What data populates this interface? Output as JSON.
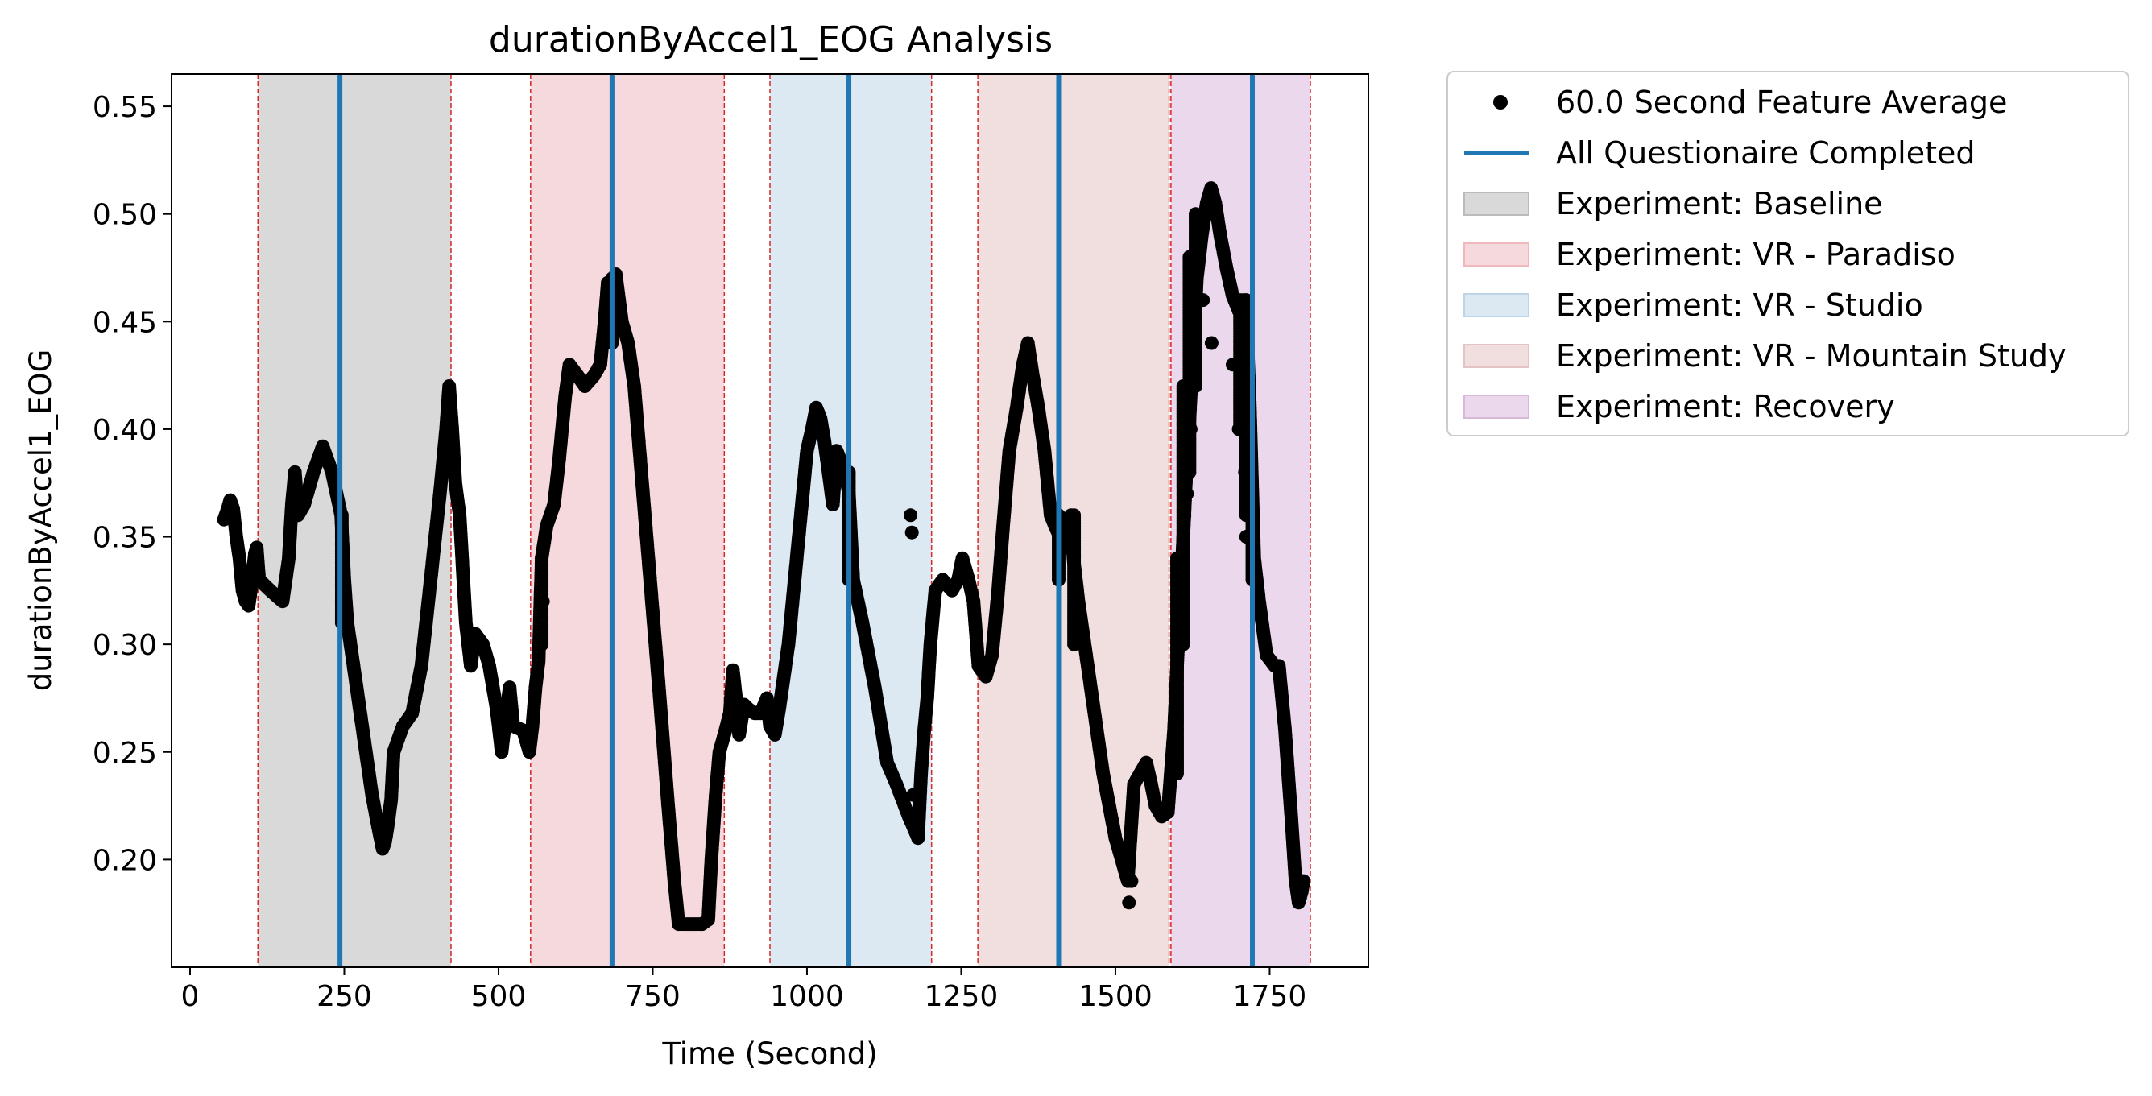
{
  "chart_data": {
    "type": "scatter",
    "title": "durationByAccel1_EOG Analysis",
    "xlabel": "Time (Second)",
    "ylabel": "durationByAccel1_EOG",
    "xlim": [
      -30,
      1910
    ],
    "ylim": [
      0.15,
      0.565
    ],
    "x_ticks": [
      0,
      250,
      500,
      750,
      1000,
      1250,
      1500,
      1750
    ],
    "y_ticks": [
      0.2,
      0.25,
      0.3,
      0.35,
      0.4,
      0.45,
      0.5,
      0.55
    ],
    "y_tick_labels": [
      "0.20",
      "0.25",
      "0.30",
      "0.35",
      "0.40",
      "0.45",
      "0.50",
      "0.55"
    ],
    "legend_position": "outside-right-top",
    "grid": false,
    "colors": {
      "points": "#000000",
      "questionnaire_line": "#1f77b4",
      "boundary_line": "#d62728"
    },
    "series": [
      {
        "name": "60.0 Second Feature Average",
        "kind": "points",
        "anchors": [
          [
            55,
            0.358
          ],
          [
            60,
            0.362
          ],
          [
            65,
            0.367
          ],
          [
            70,
            0.363
          ],
          [
            75,
            0.35
          ],
          [
            80,
            0.34
          ],
          [
            85,
            0.325
          ],
          [
            90,
            0.32
          ],
          [
            95,
            0.318
          ],
          [
            100,
            0.328
          ],
          [
            105,
            0.342
          ],
          [
            108,
            0.345
          ],
          [
            112,
            0.33
          ],
          [
            130,
            0.325
          ],
          [
            150,
            0.32
          ],
          [
            160,
            0.34
          ],
          [
            165,
            0.365
          ],
          [
            170,
            0.38
          ],
          [
            175,
            0.36
          ],
          [
            185,
            0.365
          ],
          [
            200,
            0.38
          ],
          [
            215,
            0.392
          ],
          [
            230,
            0.38
          ],
          [
            245,
            0.36
          ],
          [
            250,
            0.33
          ],
          [
            255,
            0.31
          ],
          [
            265,
            0.29
          ],
          [
            280,
            0.26
          ],
          [
            295,
            0.23
          ],
          [
            305,
            0.215
          ],
          [
            312,
            0.205
          ],
          [
            316,
            0.208
          ],
          [
            320,
            0.215
          ],
          [
            326,
            0.228
          ],
          [
            330,
            0.25
          ],
          [
            345,
            0.262
          ],
          [
            360,
            0.268
          ],
          [
            375,
            0.29
          ],
          [
            390,
            0.33
          ],
          [
            405,
            0.37
          ],
          [
            415,
            0.4
          ],
          [
            420,
            0.42
          ],
          [
            425,
            0.4
          ],
          [
            430,
            0.375
          ],
          [
            437,
            0.36
          ],
          [
            447,
            0.31
          ],
          [
            455,
            0.29
          ],
          [
            462,
            0.305
          ],
          [
            475,
            0.3
          ],
          [
            485,
            0.29
          ],
          [
            497,
            0.27
          ],
          [
            505,
            0.25
          ],
          [
            510,
            0.262
          ],
          [
            518,
            0.28
          ],
          [
            524,
            0.262
          ],
          [
            540,
            0.26
          ],
          [
            550,
            0.25
          ],
          [
            555,
            0.262
          ],
          [
            560,
            0.28
          ],
          [
            565,
            0.292
          ],
          [
            570,
            0.34
          ],
          [
            578,
            0.355
          ],
          [
            590,
            0.365
          ],
          [
            598,
            0.385
          ],
          [
            608,
            0.415
          ],
          [
            615,
            0.43
          ],
          [
            628,
            0.425
          ],
          [
            640,
            0.42
          ],
          [
            655,
            0.425
          ],
          [
            665,
            0.43
          ],
          [
            672,
            0.45
          ],
          [
            677,
            0.468
          ],
          [
            683,
            0.46
          ],
          [
            690,
            0.472
          ],
          [
            700,
            0.45
          ],
          [
            710,
            0.44
          ],
          [
            720,
            0.42
          ],
          [
            740,
            0.35
          ],
          [
            760,
            0.28
          ],
          [
            775,
            0.225
          ],
          [
            785,
            0.19
          ],
          [
            792,
            0.17
          ],
          [
            810,
            0.17
          ],
          [
            830,
            0.17
          ],
          [
            840,
            0.172
          ],
          [
            845,
            0.2
          ],
          [
            852,
            0.23
          ],
          [
            858,
            0.25
          ],
          [
            866,
            0.258
          ],
          [
            875,
            0.268
          ],
          [
            880,
            0.288
          ],
          [
            885,
            0.275
          ],
          [
            890,
            0.258
          ],
          [
            898,
            0.272
          ],
          [
            905,
            0.27
          ],
          [
            915,
            0.268
          ],
          [
            925,
            0.268
          ],
          [
            935,
            0.275
          ],
          [
            940,
            0.262
          ],
          [
            948,
            0.258
          ],
          [
            955,
            0.27
          ],
          [
            960,
            0.28
          ],
          [
            970,
            0.3
          ],
          [
            980,
            0.33
          ],
          [
            990,
            0.36
          ],
          [
            1000,
            0.39
          ],
          [
            1008,
            0.4
          ],
          [
            1015,
            0.41
          ],
          [
            1022,
            0.405
          ],
          [
            1028,
            0.395
          ],
          [
            1035,
            0.38
          ],
          [
            1042,
            0.365
          ],
          [
            1048,
            0.39
          ],
          [
            1055,
            0.385
          ],
          [
            1062,
            0.38
          ],
          [
            1068,
            0.37
          ],
          [
            1075,
            0.33
          ],
          [
            1090,
            0.31
          ],
          [
            1110,
            0.28
          ],
          [
            1130,
            0.245
          ],
          [
            1145,
            0.235
          ],
          [
            1165,
            0.22
          ],
          [
            1180,
            0.21
          ],
          [
            1185,
            0.24
          ],
          [
            1190,
            0.26
          ],
          [
            1195,
            0.275
          ],
          [
            1200,
            0.3
          ],
          [
            1208,
            0.325
          ],
          [
            1220,
            0.33
          ],
          [
            1235,
            0.325
          ],
          [
            1245,
            0.33
          ],
          [
            1252,
            0.34
          ],
          [
            1262,
            0.33
          ],
          [
            1270,
            0.32
          ],
          [
            1278,
            0.29
          ],
          [
            1290,
            0.285
          ],
          [
            1300,
            0.295
          ],
          [
            1310,
            0.325
          ],
          [
            1318,
            0.355
          ],
          [
            1328,
            0.39
          ],
          [
            1340,
            0.41
          ],
          [
            1350,
            0.43
          ],
          [
            1358,
            0.44
          ],
          [
            1366,
            0.425
          ],
          [
            1375,
            0.41
          ],
          [
            1385,
            0.39
          ],
          [
            1395,
            0.36
          ],
          [
            1402,
            0.355
          ],
          [
            1410,
            0.35
          ],
          [
            1420,
            0.345
          ],
          [
            1428,
            0.36
          ],
          [
            1432,
            0.34
          ],
          [
            1440,
            0.32
          ],
          [
            1450,
            0.3
          ],
          [
            1460,
            0.28
          ],
          [
            1470,
            0.26
          ],
          [
            1480,
            0.24
          ],
          [
            1490,
            0.225
          ],
          [
            1500,
            0.21
          ],
          [
            1510,
            0.2
          ],
          [
            1520,
            0.19
          ],
          [
            1530,
            0.235
          ],
          [
            1540,
            0.24
          ],
          [
            1550,
            0.245
          ],
          [
            1558,
            0.235
          ],
          [
            1565,
            0.225
          ],
          [
            1575,
            0.22
          ],
          [
            1585,
            0.222
          ],
          [
            1595,
            0.26
          ],
          [
            1605,
            0.32
          ],
          [
            1615,
            0.38
          ],
          [
            1625,
            0.43
          ],
          [
            1632,
            0.47
          ],
          [
            1640,
            0.49
          ],
          [
            1648,
            0.505
          ],
          [
            1655,
            0.512
          ],
          [
            1662,
            0.505
          ],
          [
            1670,
            0.49
          ],
          [
            1680,
            0.475
          ],
          [
            1690,
            0.462
          ],
          [
            1700,
            0.455
          ],
          [
            1708,
            0.46
          ],
          [
            1712,
            0.455
          ],
          [
            1718,
            0.41
          ],
          [
            1725,
            0.34
          ],
          [
            1733,
            0.32
          ],
          [
            1745,
            0.295
          ],
          [
            1758,
            0.29
          ],
          [
            1765,
            0.29
          ],
          [
            1775,
            0.26
          ],
          [
            1785,
            0.22
          ],
          [
            1792,
            0.19
          ],
          [
            1797,
            0.18
          ],
          [
            1802,
            0.185
          ],
          [
            1805,
            0.19
          ]
        ],
        "isolated": [
          [
            572,
            0.32
          ],
          [
            1168,
            0.36
          ],
          [
            1170,
            0.352
          ],
          [
            1172,
            0.23
          ],
          [
            1522,
            0.18
          ],
          [
            1526,
            0.19
          ],
          [
            1612,
            0.36
          ],
          [
            1616,
            0.37
          ],
          [
            1622,
            0.4
          ],
          [
            1630,
            0.45
          ],
          [
            1642,
            0.46
          ],
          [
            1656,
            0.44
          ],
          [
            1690,
            0.43
          ],
          [
            1700,
            0.4
          ],
          [
            1710,
            0.38
          ],
          [
            1712,
            0.35
          ]
        ],
        "vertical_runs": [
          [
            246,
            0.31,
            0.36
          ],
          [
            570,
            0.3,
            0.34
          ],
          [
            684,
            0.44,
            0.47
          ],
          [
            1068,
            0.33,
            0.38
          ],
          [
            1408,
            0.33,
            0.36
          ],
          [
            1433,
            0.3,
            0.36
          ],
          [
            1722,
            0.33,
            0.36
          ],
          [
            1600,
            0.24,
            0.34
          ],
          [
            1610,
            0.3,
            0.42
          ],
          [
            1620,
            0.38,
            0.48
          ],
          [
            1630,
            0.42,
            0.5
          ],
          [
            1702,
            0.4,
            0.46
          ],
          [
            1712,
            0.36,
            0.46
          ]
        ]
      },
      {
        "name": "All Questionaire Completed",
        "kind": "vlines",
        "x": [
          243,
          684,
          1068,
          1408,
          1722
        ]
      }
    ],
    "regions": [
      {
        "name": "Experiment: Baseline",
        "x0": 110,
        "x1": 423,
        "color": "#d9d9d9"
      },
      {
        "name": "Experiment: VR - Paradiso",
        "x0": 552,
        "x1": 866,
        "color": "#f6d9dc"
      },
      {
        "name": "Experiment: VR - Studio",
        "x0": 940,
        "x1": 1202,
        "color": "#dde9f2"
      },
      {
        "name": "Experiment: VR - Mountain Study",
        "x0": 1277,
        "x1": 1587,
        "color": "#f1dfdf"
      },
      {
        "name": "Experiment: Recovery",
        "x0": 1590,
        "x1": 1816,
        "color": "#ecd8ec"
      }
    ],
    "legend": [
      {
        "label": "60.0 Second Feature Average",
        "marker": "point",
        "color": "#000000"
      },
      {
        "label": "All Questionaire Completed",
        "marker": "line",
        "color": "#1f77b4"
      },
      {
        "label": "Experiment: Baseline",
        "marker": "patch",
        "color": "#d9d9d9",
        "border": "#bbbbbb"
      },
      {
        "label": "Experiment: VR - Paradiso",
        "marker": "patch",
        "color": "#f6d9dc",
        "border": "#f0b8bd"
      },
      {
        "label": "Experiment: VR - Studio",
        "marker": "patch",
        "color": "#dde9f2",
        "border": "#bcd5e8"
      },
      {
        "label": "Experiment: VR - Mountain Study",
        "marker": "patch",
        "color": "#f1dfdf",
        "border": "#e3c3c3"
      },
      {
        "label": "Experiment: Recovery",
        "marker": "patch",
        "color": "#ecd8ec",
        "border": "#d8b8d8"
      }
    ]
  }
}
